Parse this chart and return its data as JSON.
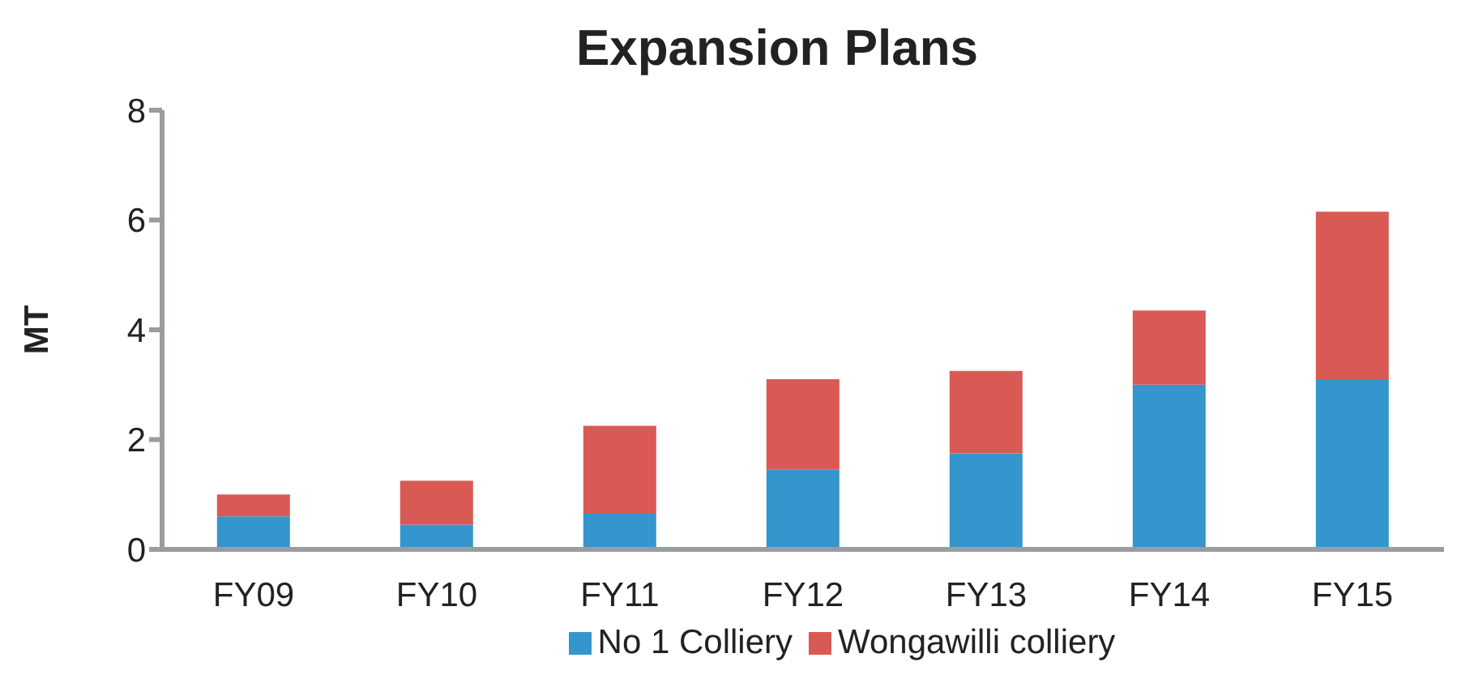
{
  "chart_data": {
    "type": "bar",
    "title": "Expansion Plans",
    "ylabel": "MT",
    "categories": [
      "FY09",
      "FY10",
      "FY11",
      "FY12",
      "FY13",
      "FY14",
      "FY15"
    ],
    "series": [
      {
        "name": "No 1 Colliery",
        "color": "#3596cd",
        "values": [
          0.6,
          0.45,
          0.65,
          1.45,
          1.75,
          3.0,
          3.1
        ]
      },
      {
        "name": "Wongawilli colliery",
        "color": "#d95a54",
        "values": [
          0.4,
          0.8,
          1.6,
          1.65,
          1.5,
          1.35,
          3.05
        ]
      }
    ],
    "stacked": true,
    "ylim": [
      0,
      8
    ],
    "yticks": [
      0,
      2,
      4,
      6,
      8
    ],
    "grid": false,
    "legend": "bottom"
  }
}
